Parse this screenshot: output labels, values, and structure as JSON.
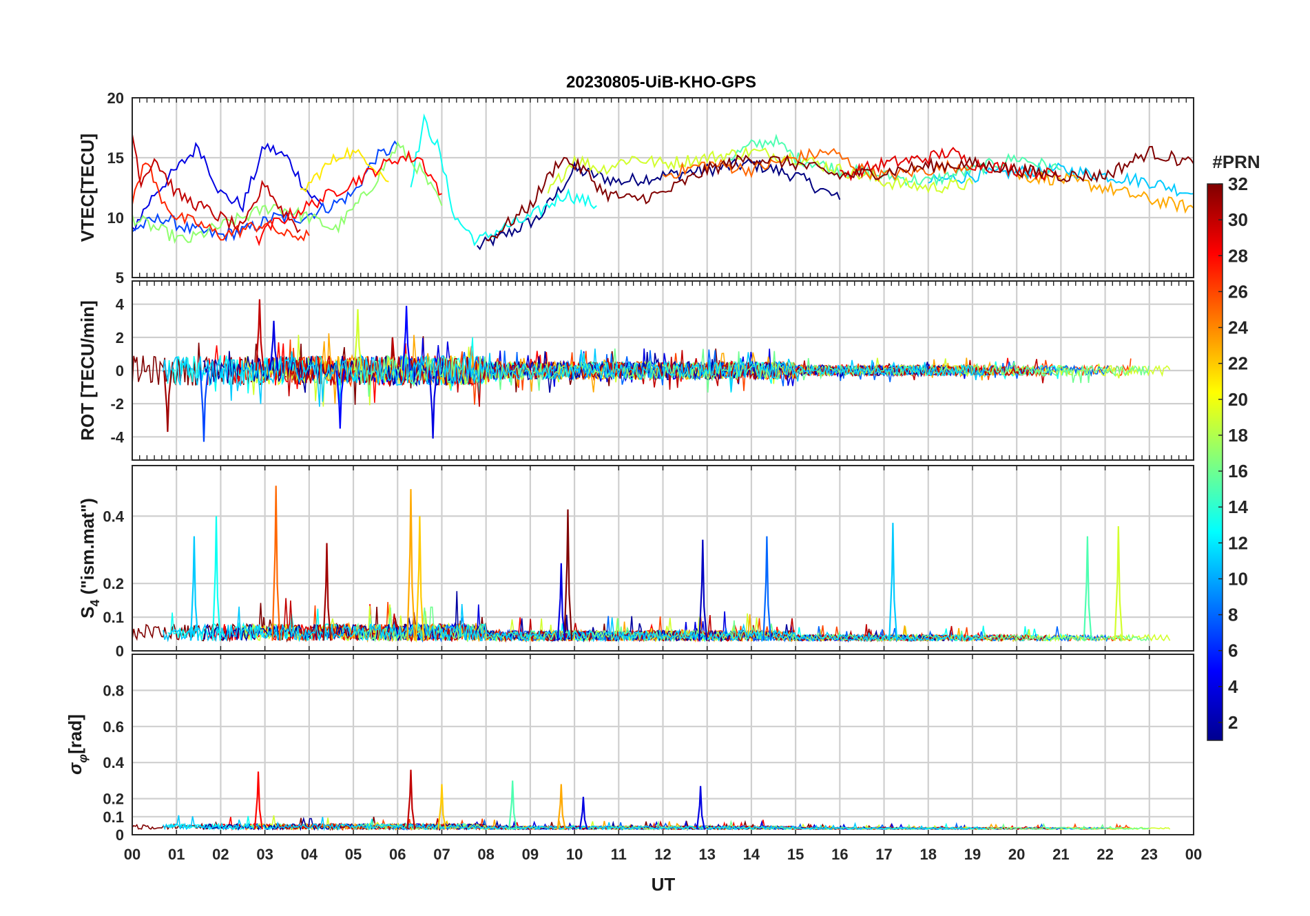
{
  "chart_data": {
    "title": "20230805-UiB-KHO-GPS",
    "xlabel": "UT",
    "x_ticks": [
      "00",
      "01",
      "02",
      "03",
      "04",
      "05",
      "06",
      "07",
      "08",
      "09",
      "10",
      "11",
      "12",
      "13",
      "14",
      "15",
      "16",
      "17",
      "18",
      "19",
      "20",
      "21",
      "22",
      "23",
      "00"
    ],
    "xlim": [
      0,
      24
    ],
    "colorbar": {
      "label": "#PRN",
      "ticks": [
        "2",
        "4",
        "6",
        "8",
        "10",
        "12",
        "14",
        "16",
        "18",
        "20",
        "22",
        "24",
        "26",
        "28",
        "30",
        "32"
      ],
      "range": [
        1,
        32
      ],
      "colormap": "jet"
    },
    "panels": [
      {
        "id": "vtec",
        "type": "line",
        "ylabel": "VTEC[TECU]",
        "ylim": [
          5,
          20
        ],
        "yticks": [
          "5",
          "10",
          "15",
          "20"
        ],
        "series": [
          {
            "prn": 1,
            "x": [
              7.8,
              8.4,
              9.2,
              10,
              11,
              12,
              13,
              14,
              15,
              16
            ],
            "y": [
              7.5,
              8.5,
              10,
              14,
              13,
              13.5,
              14,
              14.5,
              13.5,
              11.5
            ]
          },
          {
            "prn": 4,
            "x": [
              0,
              0.5,
              1,
              1.5,
              2,
              2.5,
              3,
              3.5,
              4,
              4.3
            ],
            "y": [
              9,
              12,
              14,
              16,
              12,
              11,
              16,
              15,
              12,
              11
            ]
          },
          {
            "prn": 7,
            "x": [
              0,
              0.7,
              1.3,
              2,
              2.6,
              3.2,
              3.8,
              4.5,
              5,
              5.5,
              6
            ],
            "y": [
              9,
              10,
              9,
              8.5,
              9,
              10,
              10,
              11,
              12,
              15,
              16
            ]
          },
          {
            "prn": 11,
            "x": [
              18,
              19,
              20,
              21,
              22,
              23,
              24
            ],
            "y": [
              13,
              13.5,
              13.8,
              14,
              13.5,
              13,
              12
            ]
          },
          {
            "prn": 13,
            "x": [
              6.3,
              6.6,
              6.9,
              7.3,
              7.8,
              8.3,
              9,
              9.8,
              10.5
            ],
            "y": [
              13,
              18,
              16,
              10,
              8,
              9,
              10,
              12,
              11
            ]
          },
          {
            "prn": 15,
            "x": [
              13.5,
              14,
              14.5,
              15,
              16,
              17,
              18,
              19,
              20,
              21
            ],
            "y": [
              15,
              16,
              16.5,
              15,
              14,
              13.5,
              13,
              14,
              15,
              14
            ]
          },
          {
            "prn": 17,
            "x": [
              0,
              0.6,
              1.2,
              1.8,
              2.5,
              3.2,
              4,
              4.6,
              5.3,
              6,
              6.5,
              7
            ],
            "y": [
              10,
              9,
              8,
              9,
              10,
              11,
              10,
              9,
              12,
              16,
              14,
              11
            ]
          },
          {
            "prn": 19,
            "x": [
              9.4,
              10,
              10.6,
              11.3,
              12,
              13,
              14,
              15,
              16,
              17,
              18,
              19
            ],
            "y": [
              12,
              15,
              14,
              15,
              14.5,
              15,
              15.5,
              15,
              14,
              13,
              12.5,
              12.8
            ]
          },
          {
            "prn": 21,
            "x": [
              3.8,
              4.3,
              4.8,
              5.3,
              5.8
            ],
            "y": [
              12,
              14,
              15.5,
              15,
              13
            ]
          },
          {
            "prn": 23,
            "x": [
              20,
              21,
              22,
              23,
              24
            ],
            "y": [
              13.5,
              13.2,
              12.5,
              11.5,
              10.8
            ]
          },
          {
            "prn": 25,
            "x": [
              12,
              13,
              14,
              15,
              15.8,
              16.5,
              17,
              18,
              19
            ],
            "y": [
              13.5,
              14.5,
              14,
              15,
              15.5,
              14,
              13.5,
              14,
              14.5
            ]
          },
          {
            "prn": 27,
            "x": [
              0,
              0.3,
              0.6,
              1,
              1.5,
              2,
              2.5,
              3,
              3.5,
              4
            ],
            "y": [
              11,
              15,
              12,
              10,
              9.5,
              8.5,
              9,
              9.5,
              8.5,
              8.5
            ]
          },
          {
            "prn": 28,
            "x": [
              2.8,
              3.2,
              4,
              5,
              6,
              6.5,
              7
            ],
            "y": [
              8,
              9.5,
              11,
              13,
              15,
              15,
              12
            ]
          },
          {
            "prn": 29,
            "x": [
              16,
              17,
              18,
              18.5,
              19,
              20,
              21
            ],
            "y": [
              13.5,
              14.5,
              15,
              15.5,
              14.5,
              14,
              13.5
            ]
          },
          {
            "prn": 30,
            "x": [
              0,
              0.2,
              0.5,
              1,
              1.5,
              2,
              2.5,
              3,
              3.3,
              3.8
            ],
            "y": [
              17,
              13,
              15,
              12,
              11,
              10,
              9,
              13,
              11,
              9
            ]
          },
          {
            "prn": 32,
            "x": [
              8,
              9,
              9.7,
              10.2,
              10.7,
              11.3,
              12,
              13,
              14,
              15,
              16,
              17,
              18,
              19,
              20,
              21,
              22,
              23,
              24
            ],
            "y": [
              8,
              11,
              15,
              14,
              12,
              11.5,
              12,
              14,
              15,
              14.5,
              13.5,
              13.8,
              14.3,
              14.5,
              14,
              13.5,
              13.5,
              15.5,
              14.5
            ]
          }
        ]
      },
      {
        "id": "rot",
        "type": "line",
        "ylabel": "ROT [TECU/min]",
        "ylim": [
          -5.4,
          5.4
        ],
        "yticks": [
          "-4",
          "-2",
          "0",
          "2",
          "4"
        ],
        "peaks": [
          {
            "prn": 30,
            "x": 2.88,
            "y": 4.3
          },
          {
            "prn": 5,
            "x": 6.2,
            "y": 3.9
          },
          {
            "prn": 4,
            "x": 3.2,
            "y": 3.0
          },
          {
            "prn": 19,
            "x": 5.1,
            "y": 3.7
          },
          {
            "prn": 7,
            "x": 1.62,
            "y": -4.3
          },
          {
            "prn": 4,
            "x": 6.8,
            "y": -4.1
          },
          {
            "prn": 31,
            "x": 0.8,
            "y": -3.7
          },
          {
            "prn": 5,
            "x": 4.7,
            "y": -3.5
          }
        ]
      },
      {
        "id": "s4",
        "type": "line",
        "ylabel": "S4 (\"ism.mat\")",
        "ylabel_main": "S",
        "ylabel_sub": "4",
        "ylabel_rest": " (\"ism.mat\")",
        "ylim": [
          0,
          0.55
        ],
        "yticks": [
          "0",
          "0.1",
          "0.2",
          "0.4"
        ],
        "peaks": [
          {
            "prn": 11,
            "x": 1.4,
            "y": 0.34
          },
          {
            "prn": 13,
            "x": 1.9,
            "y": 0.4
          },
          {
            "prn": 25,
            "x": 3.25,
            "y": 0.49
          },
          {
            "prn": 31,
            "x": 4.4,
            "y": 0.32
          },
          {
            "prn": 23,
            "x": 6.3,
            "y": 0.48
          },
          {
            "prn": 22,
            "x": 6.5,
            "y": 0.4
          },
          {
            "prn": 32,
            "x": 9.85,
            "y": 0.42
          },
          {
            "prn": 4,
            "x": 9.7,
            "y": 0.26
          },
          {
            "prn": 3,
            "x": 12.9,
            "y": 0.33
          },
          {
            "prn": 8,
            "x": 14.35,
            "y": 0.34
          },
          {
            "prn": 11,
            "x": 17.2,
            "y": 0.38
          },
          {
            "prn": 15,
            "x": 21.6,
            "y": 0.34
          },
          {
            "prn": 19,
            "x": 22.3,
            "y": 0.37
          }
        ]
      },
      {
        "id": "sigma",
        "type": "line",
        "ylabel": "σφ[rad]",
        "ylabel_main": "σ",
        "ylabel_sub": "φ",
        "ylabel_rest": "[rad]",
        "ylim": [
          0,
          1.0
        ],
        "yticks": [
          "0",
          "0.1",
          "0.2",
          "0.4",
          "0.6",
          "0.8"
        ],
        "peaks": [
          {
            "prn": 28,
            "x": 2.85,
            "y": 0.35
          },
          {
            "prn": 30,
            "x": 6.3,
            "y": 0.36
          },
          {
            "prn": 22,
            "x": 7.0,
            "y": 0.28
          },
          {
            "prn": 15,
            "x": 8.6,
            "y": 0.3
          },
          {
            "prn": 23,
            "x": 9.7,
            "y": 0.28
          },
          {
            "prn": 4,
            "x": 10.2,
            "y": 0.21
          },
          {
            "prn": 4,
            "x": 12.85,
            "y": 0.27
          }
        ]
      }
    ]
  }
}
